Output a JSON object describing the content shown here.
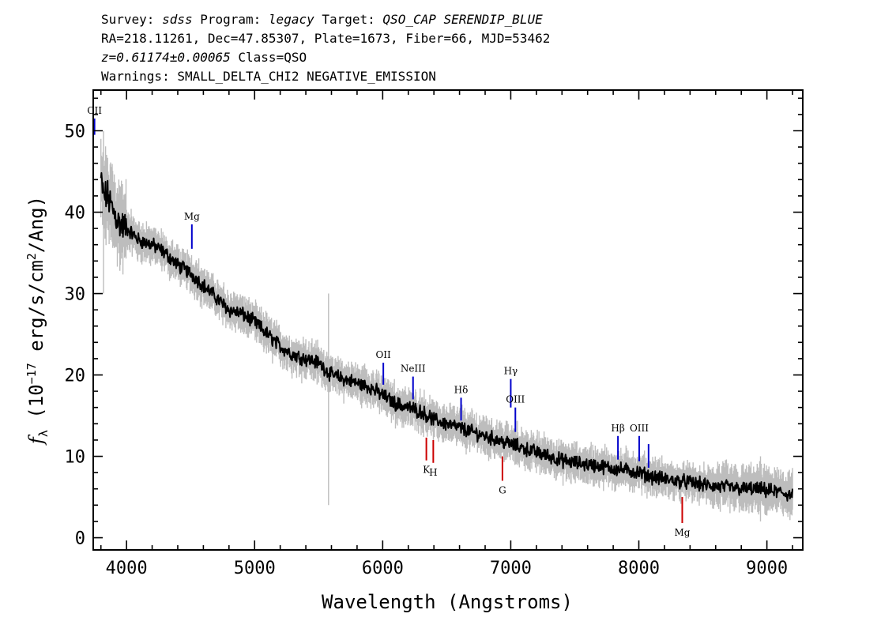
{
  "header": {
    "line1": [
      {
        "text": "Survey: ",
        "italic": false
      },
      {
        "text": "sdss",
        "italic": true
      },
      {
        "text": " Program: ",
        "italic": false
      },
      {
        "text": "legacy",
        "italic": true
      },
      {
        "text": " Target: ",
        "italic": false
      },
      {
        "text": "QSO_CAP SERENDIP_BLUE",
        "italic": true
      }
    ],
    "line2": "RA=218.11261, Dec=47.85307, Plate=1673, Fiber=66, MJD=53462",
    "line3_italic": "z=0.61174±0.00065",
    "line3_rest": " Class=QSO",
    "line4": "Warnings: SMALL_DELTA_CHI2 NEGATIVE_EMISSION"
  },
  "chart_data": {
    "type": "line",
    "xlabel": "Wavelength (Angstroms)",
    "ylabel": "f_λ (10^-17 erg/s/cm²/Ang)",
    "ylabel_parts": {
      "f": "f",
      "sub": "λ",
      "pre": "(10",
      "exp": "−17",
      "mid": " erg/s/cm",
      "exp2": "2",
      "post": "/Ang)"
    },
    "xlim": [
      3740,
      9280
    ],
    "ylim": [
      -1.5,
      55
    ],
    "xticks": [
      4000,
      5000,
      6000,
      7000,
      8000,
      9000
    ],
    "xtick_labels": [
      "4000",
      "5000",
      "6000",
      "7000",
      "8000",
      "9000"
    ],
    "yticks": [
      0,
      10,
      20,
      30,
      40,
      50
    ],
    "ytick_labels": [
      "0",
      "10",
      "20",
      "30",
      "40",
      "50"
    ],
    "series": [
      {
        "color": "#000000",
        "x": [
          3800,
          3820,
          3850,
          3900,
          3950,
          4000,
          4100,
          4200,
          4300,
          4400,
          4500,
          4600,
          4700,
          4800,
          4900,
          5000,
          5100,
          5200,
          5300,
          5400,
          5500,
          5600,
          5700,
          5800,
          5900,
          6000,
          6100,
          6200,
          6300,
          6400,
          6500,
          6600,
          6700,
          6800,
          6900,
          7000,
          7100,
          7200,
          7300,
          7400,
          7500,
          7600,
          7700,
          7800,
          7900,
          8000,
          8100,
          8200,
          8300,
          8400,
          8500,
          8600,
          8700,
          8800,
          8900,
          9000,
          9100,
          9200
        ],
        "y": [
          44,
          42,
          42,
          40,
          38.5,
          38,
          36.5,
          36,
          35,
          33.5,
          32.5,
          31,
          29.5,
          28,
          27.5,
          26.5,
          25,
          23.5,
          22.5,
          22,
          21.5,
          20,
          19.5,
          19,
          18.5,
          17.5,
          16.5,
          16,
          15.5,
          14.5,
          14,
          13.5,
          13,
          12.5,
          12,
          11.5,
          11,
          10.5,
          10,
          9.5,
          9.2,
          9,
          8.8,
          8.5,
          8.3,
          8,
          7.5,
          7.2,
          7,
          6.8,
          6.5,
          6.3,
          6.2,
          6,
          6,
          5.8,
          5.6,
          5.2
        ]
      }
    ],
    "error_band_color": "#bdbdbd",
    "emission_lines": [
      {
        "label": "CII",
        "x": 3750,
        "y_top": 51.5,
        "y_bottom": 49.5,
        "color": "#0000cc",
        "label_pos": "above"
      },
      {
        "label": "Mg",
        "x": 4510,
        "y_top": 38.5,
        "y_bottom": 35.5,
        "color": "#0000cc",
        "label_pos": "above"
      },
      {
        "label": "OII",
        "x": 6005,
        "y_top": 21.5,
        "y_bottom": 18.8,
        "color": "#0000cc",
        "label_pos": "above"
      },
      {
        "label": "NeIII",
        "x": 6237,
        "y_top": 19.8,
        "y_bottom": 17.0,
        "color": "#0000cc",
        "label_pos": "above"
      },
      {
        "label": "Hδ",
        "x": 6612,
        "y_top": 17.2,
        "y_bottom": 14.4,
        "color": "#0000cc",
        "label_pos": "above"
      },
      {
        "label": "Hγ",
        "x": 7000,
        "y_top": 19.5,
        "y_bottom": 16.0,
        "color": "#0000cc",
        "label_pos": "above"
      },
      {
        "label": "OIII",
        "x": 7036,
        "y_top": 16.0,
        "y_bottom": 13.0,
        "color": "#0000cc",
        "label_pos": "above"
      },
      {
        "label": "Hβ",
        "x": 7837,
        "y_top": 12.5,
        "y_bottom": 9.6,
        "color": "#0000cc",
        "label_pos": "above"
      },
      {
        "label": "OIII",
        "x": 8003,
        "y_top": 12.5,
        "y_bottom": 9.4,
        "color": "#0000cc",
        "label_pos": "above"
      },
      {
        "label": "",
        "x": 8076,
        "y_top": 11.5,
        "y_bottom": 8.6,
        "color": "#0000cc",
        "label_pos": "none"
      },
      {
        "label": "K",
        "x": 6341,
        "y_top": 12.3,
        "y_bottom": 9.5,
        "color": "#cc0000",
        "label_pos": "below"
      },
      {
        "label": "H",
        "x": 6395,
        "y_top": 12.0,
        "y_bottom": 9.2,
        "color": "#cc0000",
        "label_pos": "below"
      },
      {
        "label": "G",
        "x": 6935,
        "y_top": 10.0,
        "y_bottom": 7.0,
        "color": "#cc0000",
        "label_pos": "below"
      },
      {
        "label": "Mg",
        "x": 8339,
        "y_top": 5.0,
        "y_bottom": 1.8,
        "color": "#cc0000",
        "label_pos": "below"
      }
    ]
  }
}
